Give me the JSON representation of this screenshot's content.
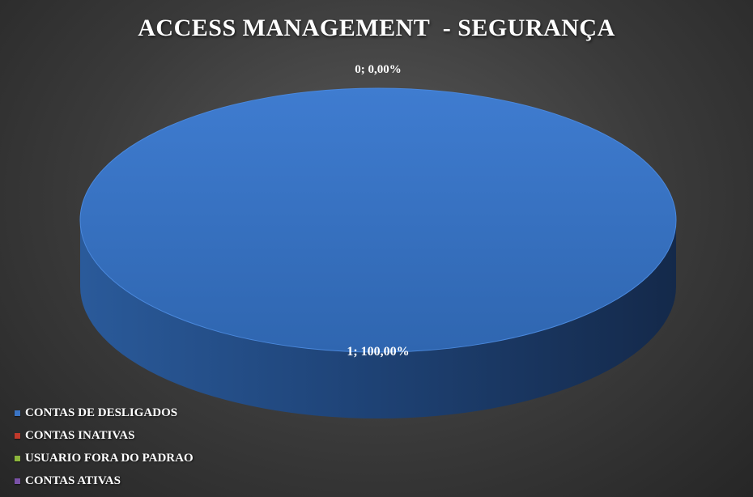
{
  "chart_data": {
    "type": "pie",
    "title": "ACCESS MANAGEMENT  - SEGURANÇA",
    "series": [
      {
        "slices": [
          {
            "label": "CONTAS DE DESLIGADOS",
            "value": 1,
            "percent": "100,00%",
            "color": "#3a74c4"
          },
          {
            "label": "CONTAS INATIVAS",
            "value": 0,
            "percent": "0,00%",
            "color": "#c0392b"
          },
          {
            "label": "USUARIO FORA DO PADRAO",
            "value": 0,
            "percent": "0,00%",
            "color": "#8cb53c"
          },
          {
            "label": "CONTAS ATIVAS",
            "value": 0,
            "percent": "0,00%",
            "color": "#7a52a8"
          }
        ]
      }
    ],
    "data_labels": [
      "0; 0,00%",
      "1; 100,00%"
    ],
    "legend_position": "bottom-left",
    "style": "3d"
  }
}
